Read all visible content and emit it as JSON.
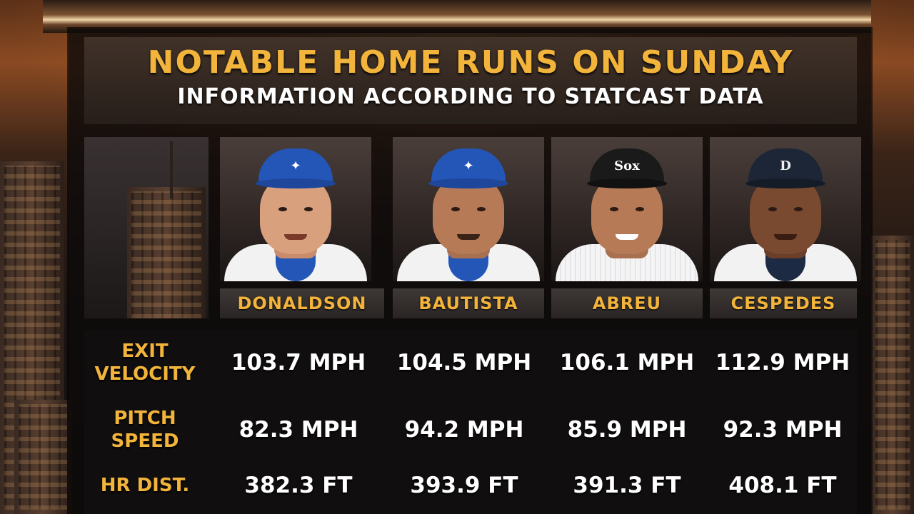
{
  "header": {
    "title": "NOTABLE HOME RUNS ON SUNDAY",
    "subtitle": "INFORMATION ACCORDING TO STATCAST DATA"
  },
  "players": [
    {
      "name": "DONALDSON",
      "cap_color": "#2456b8",
      "logo_icon": "blue-jays-logo-icon",
      "collar_color": "#2456b8"
    },
    {
      "name": "BAUTISTA",
      "cap_color": "#2456b8",
      "logo_icon": "blue-jays-logo-icon",
      "collar_color": "#2456b8"
    },
    {
      "name": "ABREU",
      "cap_color": "#1a1a1a",
      "logo_icon": "white-sox-logo-icon",
      "collar_color": "#e8e8ee"
    },
    {
      "name": "CESPEDES",
      "cap_color": "#1c2636",
      "logo_icon": "tigers-logo-icon",
      "collar_color": "#1c2a44"
    }
  ],
  "rows": [
    {
      "label_line1": "EXIT",
      "label_line2": "VELOCITY",
      "values": [
        "103.7 MPH",
        "104.5 MPH",
        "106.1 MPH",
        "112.9 MPH"
      ]
    },
    {
      "label_line1": "PITCH",
      "label_line2": "SPEED",
      "values": [
        "82.3 MPH",
        "94.2 MPH",
        "85.9 MPH",
        "92.3 MPH"
      ]
    },
    {
      "label_line1": "HR DIST.",
      "label_line2": "",
      "values": [
        "382.3 FT",
        "393.9 FT",
        "391.3 FT",
        "408.1 FT"
      ]
    }
  ],
  "colors": {
    "accent": "#f2b43a",
    "value_text": "#ffffff"
  }
}
